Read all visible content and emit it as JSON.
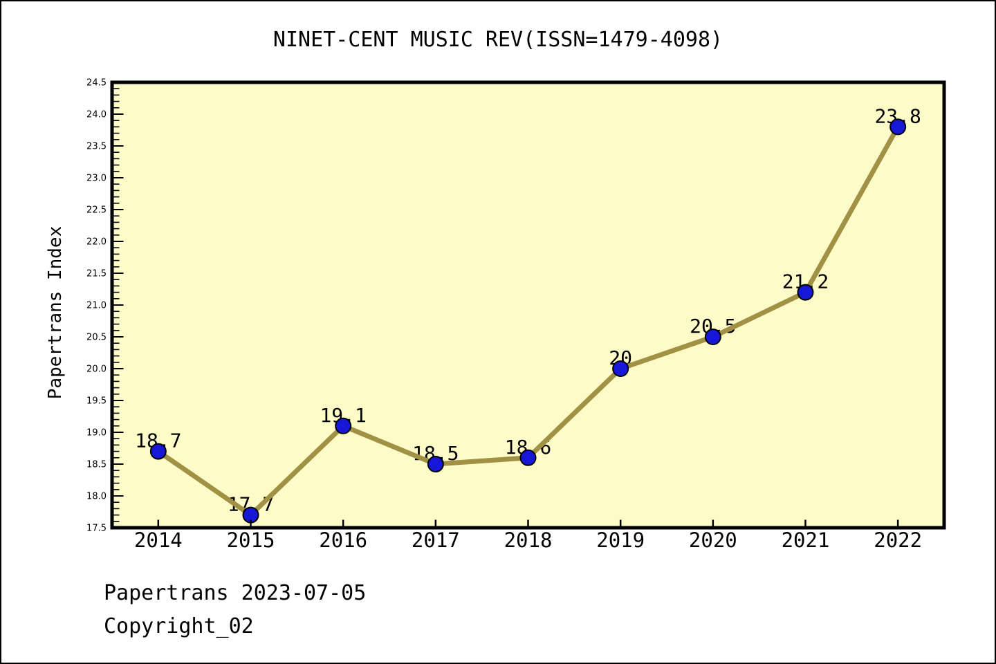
{
  "window": {
    "background": "#ffffff",
    "border_color": "#000000"
  },
  "footer": {
    "line1": "Papertrans 2023-07-05",
    "line2": "Copyright_02"
  },
  "chart_data": {
    "type": "line",
    "title": "NINET-CENT MUSIC REV(ISSN=1479-4098)",
    "xlabel": "",
    "ylabel": "Papertrans Index",
    "x": [
      2014,
      2015,
      2016,
      2017,
      2018,
      2019,
      2020,
      2021,
      2022
    ],
    "values": [
      18.7,
      17.7,
      19.1,
      18.5,
      18.6,
      20,
      20.5,
      21.2,
      23.8
    ],
    "point_labels": [
      "18.7",
      "17.7",
      "19.1",
      "18.5",
      "18.6",
      "20",
      "20.5",
      "21.2",
      "23.8"
    ],
    "xtick_labels": [
      "2014",
      "2015",
      "2016",
      "2017",
      "2018",
      "2019",
      "2020",
      "2021",
      "2022"
    ],
    "ytick_values": [
      17.5,
      18.0,
      18.5,
      19.0,
      19.5,
      20.0,
      20.5,
      21.0,
      21.5,
      22.0,
      22.5,
      23.0,
      23.5,
      24.0,
      24.5
    ],
    "ytick_labels": [
      "17.5",
      "18.0",
      "18.5",
      "19.0",
      "19.5",
      "20.0",
      "20.5",
      "21.0",
      "21.5",
      "22.0",
      "22.5",
      "23.0",
      "23.5",
      "24.0",
      "24.5"
    ],
    "y_minor_step": 0.1,
    "xlim": [
      2013.5,
      2022.5
    ],
    "ylim": [
      17.5,
      24.5
    ],
    "grid": false,
    "legend": null,
    "marker_shape": "circle",
    "colors": {
      "plot_bg": "#FDFBC8",
      "line": "#A09145",
      "marker_fill": "#1717D8",
      "marker_edge": "#000000",
      "frame": "#000000",
      "tick": "#000000",
      "text": "#000000"
    }
  }
}
